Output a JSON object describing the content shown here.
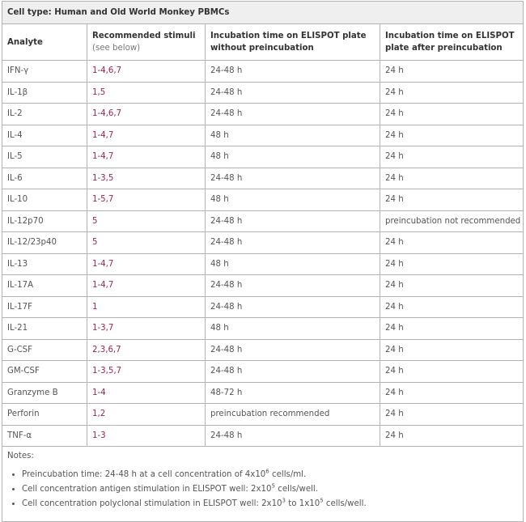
{
  "cell_type": "Cell type: Human and Old World Monkey PBMCs",
  "headers": {
    "analyte": "Analyte",
    "stimuli": "Recommended stimuli",
    "stimuli_sub": "(see below)",
    "without_line1": "Incubation time on ELISPOT plate",
    "without_line2": "without preincubation",
    "after_line1": "Incubation time on ELISPOT",
    "after_line2": "plate after preincubation"
  },
  "rows": [
    {
      "analyte": "IFN-γ",
      "stimuli": "1-4,6,7",
      "without": "24-48 h",
      "after": "24 h"
    },
    {
      "analyte": "IL-1β",
      "stimuli": "1,5",
      "without": "24-48 h",
      "after": "24 h"
    },
    {
      "analyte": "IL-2",
      "stimuli": "1-4,6,7",
      "without": "24-48 h",
      "after": "24 h"
    },
    {
      "analyte": "IL-4",
      "stimuli": "1-4,7",
      "without": "48 h",
      "after": "24 h"
    },
    {
      "analyte": "IL-5",
      "stimuli": "1-4,7",
      "without": "48 h",
      "after": "24 h"
    },
    {
      "analyte": "IL-6",
      "stimuli": "1-3,5",
      "without": "24-48 h",
      "after": "24 h"
    },
    {
      "analyte": "IL-10",
      "stimuli": "1-5,7",
      "without": "48 h",
      "after": "24 h"
    },
    {
      "analyte": "IL-12p70",
      "stimuli": "5",
      "without": "24-48 h",
      "after": "preincubation not recommended"
    },
    {
      "analyte": "IL-12/23p40",
      "stimuli": "5",
      "without": "24-48 h",
      "after": "24 h"
    },
    {
      "analyte": "IL-13",
      "stimuli": "1-4,7",
      "without": "48 h",
      "after": "24 h"
    },
    {
      "analyte": "IL-17A",
      "stimuli": "1-4,7",
      "without": "24-48 h",
      "after": "24 h"
    },
    {
      "analyte": "IL-17F",
      "stimuli": "1",
      "without": "24-48 h",
      "after": "24 h"
    },
    {
      "analyte": "IL-21",
      "stimuli": "1-3,7",
      "without": "48 h",
      "after": "24 h"
    },
    {
      "analyte": "G-CSF",
      "stimuli": "2,3,6,7",
      "without": "24-48 h",
      "after": "24 h"
    },
    {
      "analyte": "GM-CSF",
      "stimuli": "1-3,5,7",
      "without": "24-48 h",
      "after": "24 h"
    },
    {
      "analyte": "Granzyme B",
      "stimuli": "1-4",
      "without": "48-72 h",
      "after": "24 h"
    },
    {
      "analyte": "Perforin",
      "stimuli": "1,2",
      "without": "preincubation recommended",
      "after": "24 h"
    },
    {
      "analyte": "TNF-α",
      "stimuli": "1-3",
      "without": "24-48 h",
      "after": "24 h"
    }
  ],
  "notes": {
    "title": "Notes:",
    "n1_pre": "Preincubation time: 24-48 h at a cell concentration of 4x10",
    "n1_sup": "6",
    "n1_post": " cells/ml.",
    "n2_pre": "Cell concentration antigen stimulation in ELISPOT well: 2x10",
    "n2_sup": "5",
    "n2_post": " cells/well.",
    "n3_pre": "Cell concentration polyclonal stimulation in ELISPOT well: 2x10",
    "n3_sup": "3",
    "n3_mid": " to 1x10",
    "n3_sup2": "5",
    "n3_post": " cells/well."
  },
  "colors": {
    "stimuli_text": "#a3224f",
    "header_bg": "#efefef",
    "border": "#b3b3b3"
  }
}
